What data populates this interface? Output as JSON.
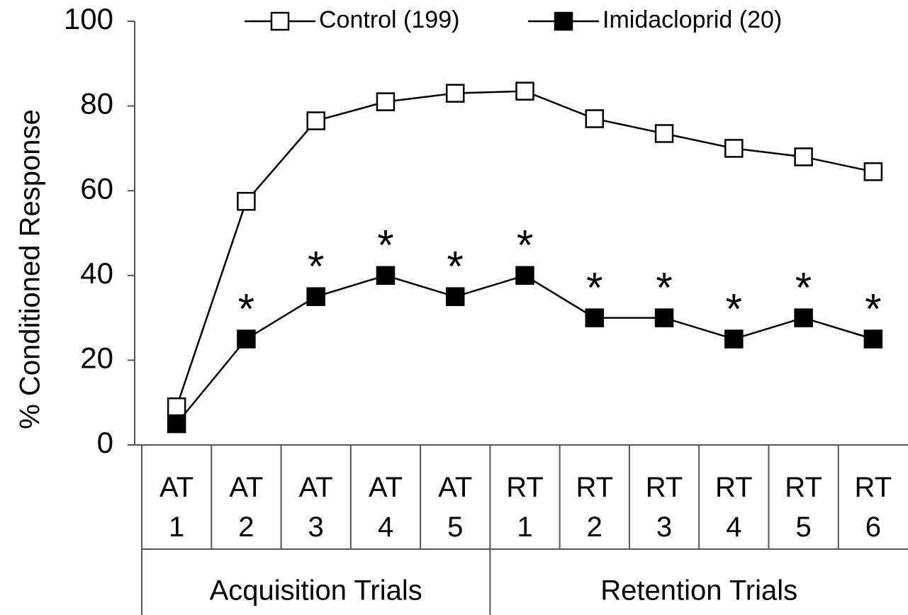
{
  "chart_data": {
    "type": "line",
    "ylabel": "% Conditioned Response",
    "categories": [
      "AT 1",
      "AT 2",
      "AT 3",
      "AT 4",
      "AT 5",
      "RT 1",
      "RT 2",
      "RT 3",
      "RT 4",
      "RT 5",
      "RT 6"
    ],
    "groups": [
      {
        "label": "Acquisition Trials",
        "count": 5
      },
      {
        "label": "Retention Trials",
        "count": 6
      }
    ],
    "series": [
      {
        "name": "Control (199)",
        "color": "#000000",
        "marker": "open-square",
        "values": [
          9,
          57.5,
          76.5,
          81,
          83,
          83.5,
          77,
          73.5,
          70,
          68,
          64.5
        ]
      },
      {
        "name": "Imidacloprid (20)",
        "color": "#000000",
        "marker": "filled-square",
        "values": [
          5,
          25,
          35,
          40,
          35,
          40,
          30,
          30,
          25,
          30,
          25
        ],
        "point_labels": [
          null,
          "*",
          "*",
          "*",
          "*",
          "*",
          "*",
          "*",
          "*",
          "*",
          "*"
        ]
      }
    ],
    "ylim": [
      0,
      100
    ],
    "yticks": [
      0,
      20,
      40,
      60,
      80,
      100
    ],
    "grid": false,
    "legend": "top"
  }
}
